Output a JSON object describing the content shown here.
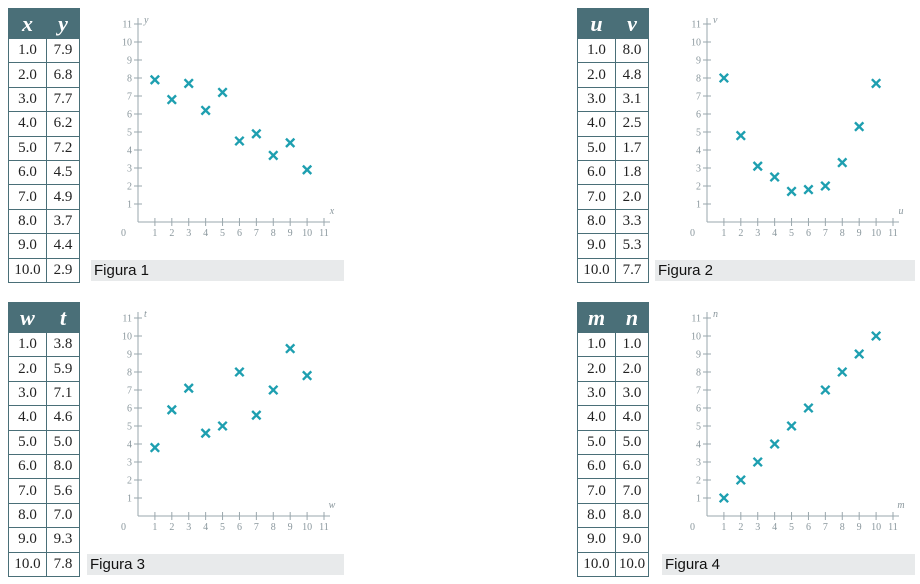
{
  "chart_data": [
    {
      "type": "scatter",
      "caption": "Figura 1",
      "xlabel": "x",
      "ylabel": "y",
      "table_headers": [
        "x",
        "y"
      ],
      "x_text": [
        "1.0",
        "2.0",
        "3.0",
        "4.0",
        "5.0",
        "6.0",
        "7.0",
        "8.0",
        "9.0",
        "10.0"
      ],
      "y_text": [
        "7.9",
        "6.8",
        "7.7",
        "6.2",
        "7.2",
        "4.5",
        "4.9",
        "3.7",
        "4.4",
        "2.9"
      ],
      "x": [
        1,
        2,
        3,
        4,
        5,
        6,
        7,
        8,
        9,
        10
      ],
      "y": [
        7.9,
        6.8,
        7.7,
        6.2,
        7.2,
        4.5,
        4.9,
        3.7,
        4.4,
        2.9
      ],
      "xlim": [
        0,
        11
      ],
      "ylim": [
        0,
        11
      ],
      "xticks": [
        "1",
        "2",
        "3",
        "4",
        "5",
        "6",
        "7",
        "8",
        "9",
        "10",
        "11"
      ],
      "yticks": [
        "1",
        "2",
        "3",
        "4",
        "5",
        "6",
        "7",
        "8",
        "9",
        "10",
        "11"
      ],
      "origin_label": "0",
      "grid": false,
      "marker_color": "#1e9fb0"
    },
    {
      "type": "scatter",
      "caption": "Figura 2",
      "xlabel": "u",
      "ylabel": "v",
      "table_headers": [
        "u",
        "v"
      ],
      "x_text": [
        "1.0",
        "2.0",
        "3.0",
        "4.0",
        "5.0",
        "6.0",
        "7.0",
        "8.0",
        "9.0",
        "10.0"
      ],
      "y_text": [
        "8.0",
        "4.8",
        "3.1",
        "2.5",
        "1.7",
        "1.8",
        "2.0",
        "3.3",
        "5.3",
        "7.7"
      ],
      "x": [
        1,
        2,
        3,
        4,
        5,
        6,
        7,
        8,
        9,
        10
      ],
      "y": [
        8.0,
        4.8,
        3.1,
        2.5,
        1.7,
        1.8,
        2.0,
        3.3,
        5.3,
        7.7
      ],
      "xlim": [
        0,
        11
      ],
      "ylim": [
        0,
        11
      ],
      "xticks": [
        "1",
        "2",
        "3",
        "4",
        "5",
        "6",
        "7",
        "8",
        "9",
        "10",
        "11"
      ],
      "yticks": [
        "1",
        "2",
        "3",
        "4",
        "5",
        "6",
        "7",
        "8",
        "9",
        "10",
        "11"
      ],
      "origin_label": "0",
      "grid": false,
      "marker_color": "#1e9fb0"
    },
    {
      "type": "scatter",
      "caption": "Figura 3",
      "xlabel": "w",
      "ylabel": "t",
      "table_headers": [
        "w",
        "t"
      ],
      "x_text": [
        "1.0",
        "2.0",
        "3.0",
        "4.0",
        "5.0",
        "6.0",
        "7.0",
        "8.0",
        "9.0",
        "10.0"
      ],
      "y_text": [
        "3.8",
        "5.9",
        "7.1",
        "4.6",
        "5.0",
        "8.0",
        "5.6",
        "7.0",
        "9.3",
        "7.8"
      ],
      "x": [
        1,
        2,
        3,
        4,
        5,
        6,
        7,
        8,
        9,
        10
      ],
      "y": [
        3.8,
        5.9,
        7.1,
        4.6,
        5.0,
        8.0,
        5.6,
        7.0,
        9.3,
        7.8
      ],
      "xlim": [
        0,
        11
      ],
      "ylim": [
        0,
        11
      ],
      "xticks": [
        "1",
        "2",
        "3",
        "4",
        "5",
        "6",
        "7",
        "8",
        "9",
        "10",
        "11"
      ],
      "yticks": [
        "1",
        "2",
        "3",
        "4",
        "5",
        "6",
        "7",
        "8",
        "9",
        "10",
        "11"
      ],
      "origin_label": "0",
      "grid": false,
      "marker_color": "#1e9fb0"
    },
    {
      "type": "scatter",
      "caption": "Figura 4",
      "xlabel": "m",
      "ylabel": "n",
      "table_headers": [
        "m",
        "n"
      ],
      "x_text": [
        "1.0",
        "2.0",
        "3.0",
        "4.0",
        "5.0",
        "6.0",
        "7.0",
        "8.0",
        "9.0",
        "10.0"
      ],
      "y_text": [
        "1.0",
        "2.0",
        "3.0",
        "4.0",
        "5.0",
        "6.0",
        "7.0",
        "8.0",
        "9.0",
        "10.0"
      ],
      "x": [
        1,
        2,
        3,
        4,
        5,
        6,
        7,
        8,
        9,
        10
      ],
      "y": [
        1.0,
        2.0,
        3.0,
        4.0,
        5.0,
        6.0,
        7.0,
        8.0,
        9.0,
        10.0
      ],
      "xlim": [
        0,
        11
      ],
      "ylim": [
        0,
        11
      ],
      "xticks": [
        "1",
        "2",
        "3",
        "4",
        "5",
        "6",
        "7",
        "8",
        "9",
        "10",
        "11"
      ],
      "yticks": [
        "1",
        "2",
        "3",
        "4",
        "5",
        "6",
        "7",
        "8",
        "9",
        "10",
        "11"
      ],
      "origin_label": "0",
      "grid": false,
      "marker_color": "#1e9fb0"
    }
  ]
}
